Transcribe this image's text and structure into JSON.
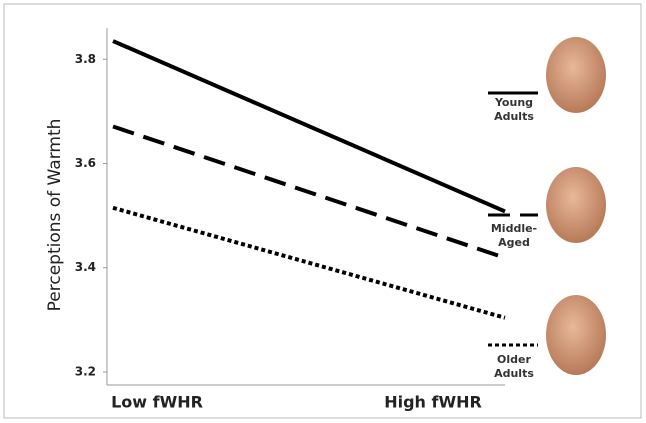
{
  "chart_data": {
    "type": "line",
    "y_label": "Perceptions of Warmth",
    "categories": [
      "Low fWHR",
      "High fWHR"
    ],
    "series": [
      {
        "name": "Young Adults",
        "color": "#000000",
        "dash": "solid",
        "values": [
          3.835,
          3.508
        ]
      },
      {
        "name": "Middle-Aged",
        "color": "#000000",
        "dash": "dashed",
        "values": [
          3.671,
          3.419
        ]
      },
      {
        "name": "Older Adults",
        "color": "#000000",
        "dash": "dotted",
        "values": [
          3.515,
          3.304
        ]
      }
    ],
    "ylim": [
      3.175,
      3.86
    ],
    "yticks": [
      {
        "value": 3.2,
        "label": "3.2"
      },
      {
        "value": 3.4,
        "label": "3.4"
      },
      {
        "value": 3.6,
        "label": "3.6"
      },
      {
        "value": 3.8,
        "label": "3.8"
      }
    ],
    "grid": false
  }
}
